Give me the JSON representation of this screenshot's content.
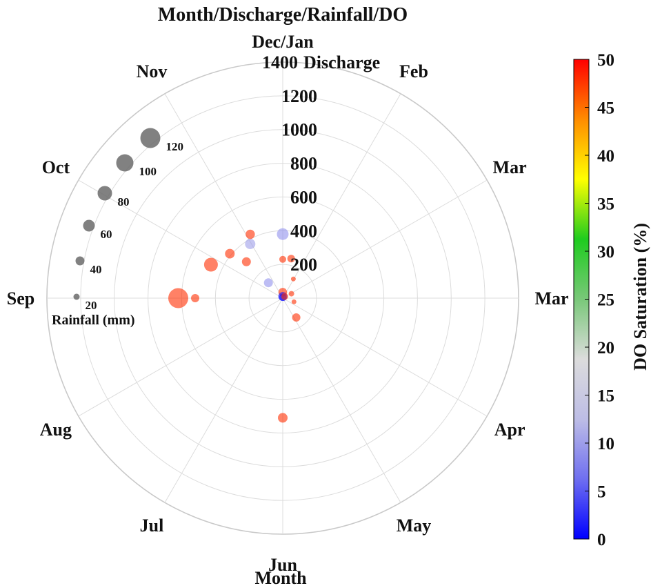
{
  "chart_data": {
    "type": "scatter",
    "coordinate_system": "polar",
    "title": "Month/Discharge/Rainfall/DO",
    "angular_axis": {
      "label": "Month",
      "tick_labels": [
        "Dec/Jan",
        "Feb",
        "Mar",
        "Mar",
        "Apr",
        "May",
        "Jun",
        "Jul",
        "Aug",
        "Sep",
        "Oct",
        "Nov"
      ]
    },
    "radial_axis": {
      "label": "Discharge",
      "range": [
        0,
        1400
      ],
      "ticks": [
        200,
        400,
        600,
        800,
        1000,
        1200,
        1400
      ]
    },
    "size_legend": {
      "label": "Rainfall (mm)",
      "values": [
        20,
        40,
        60,
        80,
        100,
        120
      ],
      "color": "#6b6b6b"
    },
    "colorbar": {
      "label": "DO Saturation (%)",
      "range": [
        0,
        50
      ],
      "ticks": [
        0,
        5,
        10,
        15,
        20,
        25,
        30,
        35,
        40,
        45,
        50
      ],
      "colors": [
        "#0000ff",
        "#6f6ff0",
        "#bdbde6",
        "#dcdcdc",
        "#79c879",
        "#1fcc1f",
        "#ffff00",
        "#ff8c00",
        "#ff0000"
      ]
    },
    "points": [
      {
        "theta_deg": 180,
        "discharge": 620,
        "rainfall": 120,
        "do": 48
      },
      {
        "theta_deg": 155,
        "discharge": 470,
        "rainfall": 75,
        "do": 48
      },
      {
        "theta_deg": 180,
        "discharge": 520,
        "rainfall": 35,
        "do": 48
      },
      {
        "theta_deg": 135,
        "discharge": 305,
        "rainfall": 40,
        "do": 48
      },
      {
        "theta_deg": 140,
        "discharge": 410,
        "rainfall": 45,
        "do": 48
      },
      {
        "theta_deg": 133,
        "discharge": 125,
        "rainfall": 40,
        "do": 9
      },
      {
        "theta_deg": 121,
        "discharge": 375,
        "rainfall": 50,
        "do": 10
      },
      {
        "theta_deg": 117,
        "discharge": 425,
        "rainfall": 42,
        "do": 48
      },
      {
        "theta_deg": 90,
        "discharge": 380,
        "rainfall": 60,
        "do": 9
      },
      {
        "theta_deg": 78,
        "discharge": 240,
        "rainfall": 30,
        "do": 48
      },
      {
        "theta_deg": 90,
        "discharge": 230,
        "rainfall": 25,
        "do": 48
      },
      {
        "theta_deg": 90,
        "discharge": 35,
        "rainfall": 38,
        "do": 48
      },
      {
        "theta_deg": 90,
        "discharge": 10,
        "rainfall": 40,
        "do": 1
      },
      {
        "theta_deg": 80,
        "discharge": 5,
        "rainfall": 28,
        "do": 1
      },
      {
        "theta_deg": 61,
        "discharge": 130,
        "rainfall": 10,
        "do": 48
      },
      {
        "theta_deg": 40,
        "discharge": 15,
        "rainfall": 25,
        "do": 48
      },
      {
        "theta_deg": 27,
        "discharge": 58,
        "rainfall": 15,
        "do": 48
      },
      {
        "theta_deg": -18,
        "discharge": 70,
        "rainfall": 10,
        "do": 48
      },
      {
        "theta_deg": -55,
        "discharge": 140,
        "rainfall": 35,
        "do": 48
      },
      {
        "theta_deg": -90,
        "discharge": 710,
        "rainfall": 45,
        "do": 48
      }
    ]
  }
}
